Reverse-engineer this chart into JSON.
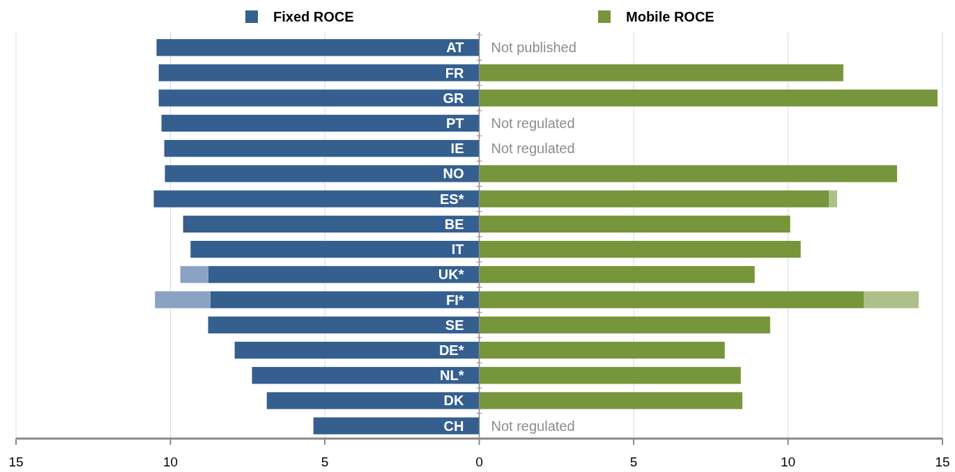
{
  "chart_data": {
    "type": "bar",
    "orientation": "horizontal",
    "stacked": true,
    "categories": [
      "AT",
      "FR",
      "GR",
      "PT",
      "IE",
      "NO",
      "ES*",
      "BE",
      "IT",
      "UK*",
      "FI*",
      "SE",
      "DE*",
      "NL*",
      "DK",
      "CH"
    ],
    "series": [
      {
        "name": "Fixed ROCE",
        "color": "#355f8f",
        "values": [
          -10.45,
          -10.38,
          -10.38,
          -10.29,
          -10.2,
          -10.18,
          -10.54,
          -9.59,
          -9.35,
          -8.78,
          -8.71,
          -8.78,
          -7.92,
          -7.36,
          -6.88,
          -5.37
        ]
      },
      {
        "color": "#8aa3c2",
        "values": [
          null,
          null,
          null,
          null,
          null,
          null,
          null,
          null,
          null,
          -0.9,
          -1.79,
          null,
          null,
          null,
          null,
          null
        ]
      },
      {
        "name": "Mobile ROCE",
        "color": "#77953a",
        "values": [
          null,
          11.79,
          14.84,
          null,
          null,
          13.53,
          11.32,
          10.07,
          10.41,
          8.92,
          12.45,
          9.42,
          7.95,
          8.47,
          8.52,
          null
        ]
      },
      {
        "color": "#adc08a",
        "values": [
          null,
          null,
          null,
          null,
          null,
          null,
          0.27,
          null,
          null,
          null,
          1.78,
          null,
          null,
          null,
          null,
          null
        ]
      }
    ],
    "xlim": [
      -15,
      15
    ],
    "xticks": [
      {
        "value": -15,
        "label": "15"
      },
      {
        "value": -10,
        "label": "10"
      },
      {
        "value": -5,
        "label": "5"
      },
      0,
      5,
      10,
      15
    ],
    "annotations": [
      "Not published",
      "Not regulated",
      "Not regulated",
      "Not regulated"
    ],
    "grid": "x",
    "legend": "top"
  }
}
